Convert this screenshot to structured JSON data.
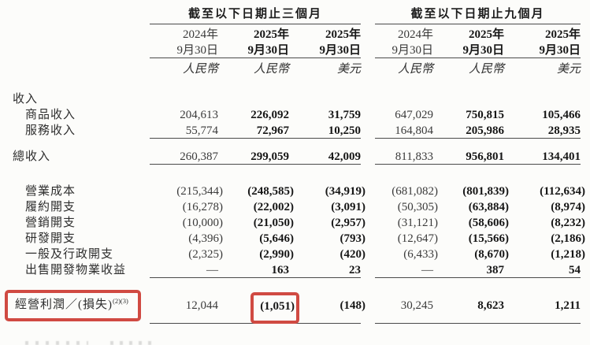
{
  "page": {
    "background": "#fcfcfa"
  },
  "highlight_color": "#d04a42",
  "table": {
    "groups": [
      {
        "title": "截至以下日期止三個月"
      },
      {
        "title": "截至以下日期止九個月"
      }
    ],
    "columns": [
      {
        "year": "2024年",
        "date": "9月30日",
        "currency": "人民幣",
        "emphasis": false
      },
      {
        "year": "2025年",
        "date": "9月30日",
        "currency": "人民幣",
        "emphasis": true
      },
      {
        "year": "2025年",
        "date": "9月30日",
        "currency": "美元",
        "emphasis": true
      },
      {
        "year": "2024年",
        "date": "9月30日",
        "currency": "人民幣",
        "emphasis": false
      },
      {
        "year": "2025年",
        "date": "9月30日",
        "currency": "人民幣",
        "emphasis": true
      },
      {
        "year": "2025年",
        "date": "9月30日",
        "currency": "美元",
        "emphasis": true
      }
    ],
    "rows": [
      {
        "label": "收入",
        "section": true
      },
      {
        "label": "商品收入",
        "indent": 1,
        "values": [
          "204,613",
          "226,092",
          "31,759",
          "647,029",
          "750,815",
          "105,466"
        ]
      },
      {
        "label": "服務收入",
        "indent": 1,
        "rule_below": true,
        "values": [
          "55,774",
          "72,967",
          "10,250",
          "164,804",
          "205,986",
          "28,935"
        ]
      },
      {
        "label": "總收入",
        "gap_before": 13,
        "rule_below": true,
        "values": [
          "260,387",
          "299,059",
          "42,009",
          "811,833",
          "956,801",
          "134,401"
        ]
      },
      {
        "label": "營業成本",
        "indent": 1,
        "gap_before": 24,
        "values": [
          "(215,344)",
          "(248,585)",
          "(34,919)",
          "(681,082)",
          "(801,839)",
          "(112,634)"
        ]
      },
      {
        "label": "履約開支",
        "indent": 1,
        "values": [
          "(16,278)",
          "(22,002)",
          "(3,091)",
          "(50,305)",
          "(63,884)",
          "(8,974)"
        ]
      },
      {
        "label": "營銷開支",
        "indent": 1,
        "values": [
          "(10,000)",
          "(21,050)",
          "(2,957)",
          "(31,121)",
          "(58,606)",
          "(8,232)"
        ]
      },
      {
        "label": "研發開支",
        "indent": 1,
        "values": [
          "(4,396)",
          "(5,646)",
          "(793)",
          "(12,647)",
          "(15,566)",
          "(2,186)"
        ]
      },
      {
        "label": "一般及行政開支",
        "indent": 1,
        "values": [
          "(2,325)",
          "(2,990)",
          "(420)",
          "(6,433)",
          "(8,670)",
          "(1,218)"
        ]
      },
      {
        "label": "出售開發物業收益",
        "indent": 1,
        "rule_below": true,
        "values": [
          "—",
          "163",
          "23",
          "—",
          "387",
          "54"
        ]
      },
      {
        "label": "經營利潤／(損失)",
        "sup": "(2)(3)",
        "gap_before": 12,
        "rule_below": true,
        "operating": true,
        "highlight_label": true,
        "highlight_value": 1,
        "values": [
          "12,044",
          "(1,051)",
          "(148)",
          "30,245",
          "8,623",
          "1,211"
        ]
      }
    ]
  }
}
